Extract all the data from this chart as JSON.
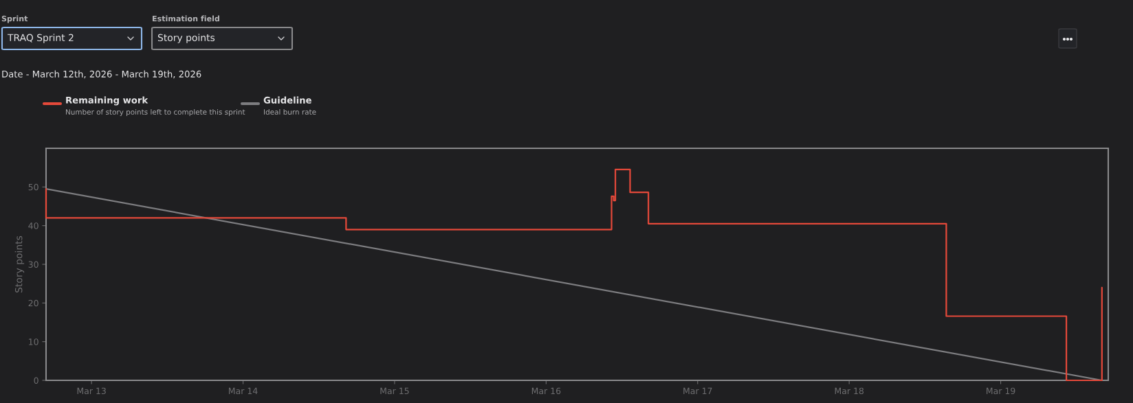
{
  "chart_data": {
    "type": "step",
    "title": "Date - March 12th, 2026 - March 19th, 2026",
    "ylabel": "Story points",
    "annotations": [
      "Sprint",
      "TRAQ Sprint 2",
      "Estimation field",
      "Story points",
      "Number of story points left to complete this sprint",
      "Ideal burn rate"
    ],
    "series": [
      {
        "name": "Remaining work",
        "color": "#e5493a",
        "x": [
          "2026-03-12T16:48",
          "2026-03-12T16:48",
          "2026-03-14T16:19",
          "2026-03-16T10:22",
          "2026-03-16T10:42",
          "2026-03-16T10:58",
          "2026-03-16T13:18",
          "2026-03-16T16:12",
          "2026-03-18T15:23",
          "2026-03-19T10:24",
          "2026-03-19T16:02"
        ],
        "values": [
          49.5,
          42,
          39,
          47.6,
          46.5,
          54.5,
          48.6,
          40.5,
          16.6,
          0,
          24
        ]
      },
      {
        "name": "Guideline",
        "color": "#7d7d80",
        "type": "line",
        "x": [
          "2026-03-12T16:48",
          "2026-03-19T16:02"
        ],
        "values": [
          49.5,
          0
        ]
      }
    ],
    "xlim": [
      "2026-03-12T16:48",
      "2026-03-19T17:02"
    ],
    "ylim": [
      0,
      60
    ],
    "xticks": [
      {
        "value": "2026-03-13",
        "label": "Mar 13"
      },
      {
        "value": "2026-03-14",
        "label": "Mar 14"
      },
      {
        "value": "2026-03-15",
        "label": "Mar 15"
      },
      {
        "value": "2026-03-16",
        "label": "Mar 16"
      },
      {
        "value": "2026-03-17",
        "label": "Mar 17"
      },
      {
        "value": "2026-03-18",
        "label": "Mar 18"
      },
      {
        "value": "2026-03-19",
        "label": "Mar 19"
      }
    ],
    "yticks": [
      0,
      10,
      20,
      30,
      40,
      50
    ],
    "grid": false,
    "legend": "top left",
    "marker": "none",
    "line_style": "solid"
  }
}
